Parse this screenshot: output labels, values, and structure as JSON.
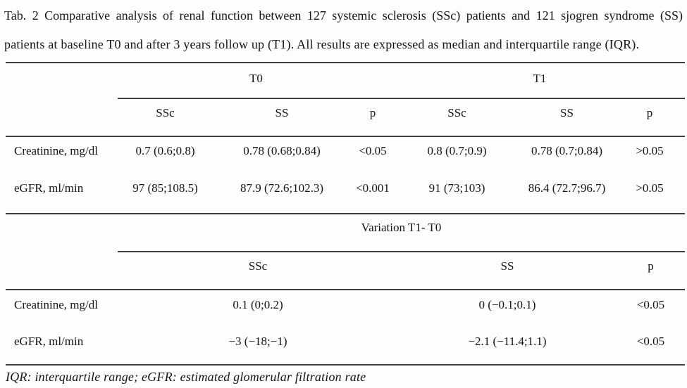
{
  "caption": {
    "line1": "Tab. 2 Comparative analysis of renal function between 127 systemic sclerosis (SSc) patients and 121 sjogren syndrome (SS)",
    "line2": "patients at baseline T0 and after 3 years follow up (T1). All results are expressed as median and interquartile range (IQR)."
  },
  "table": {
    "section1": {
      "group_headers": [
        "T0",
        "T1"
      ],
      "col_headers": [
        "SSc",
        "SS",
        "p",
        "SSc",
        "SS",
        "p"
      ],
      "rows": [
        {
          "label": "Creatinine, mg/dl",
          "values": [
            "0.7 (0.6;0.8)",
            "0.78 (0.68;0.84)",
            "<0.05",
            "0.8 (0.7;0.9)",
            "0.78 (0.7;0.84)",
            ">0.05"
          ]
        },
        {
          "label": "eGFR, ml/min",
          "values": [
            "97 (85;108.5)",
            "87.9 (72.6;102.3)",
            "<0.001",
            "91 (73;103)",
            "86.4 (72.7;96.7)",
            ">0.05"
          ]
        }
      ]
    },
    "section2": {
      "group_header": "Variation T1- T0",
      "col_headers": [
        "SSc",
        "SS",
        "p"
      ],
      "rows": [
        {
          "label": "Creatinine, mg/dl",
          "values": [
            "0.1 (0;0.2)",
            "0 (−0.1;0.1)",
            "<0.05"
          ]
        },
        {
          "label": "eGFR, ml/min",
          "values": [
            "−3 (−18;−1)",
            "−2.1 (−11.4;1.1)",
            "<0.05"
          ]
        }
      ]
    }
  },
  "footnote": "IQR: interquartile range; eGFR: estimated glomerular filtration rate",
  "colors": {
    "text": "#151515",
    "rule": "#3f3f3f",
    "background": "#fdfdfd"
  }
}
